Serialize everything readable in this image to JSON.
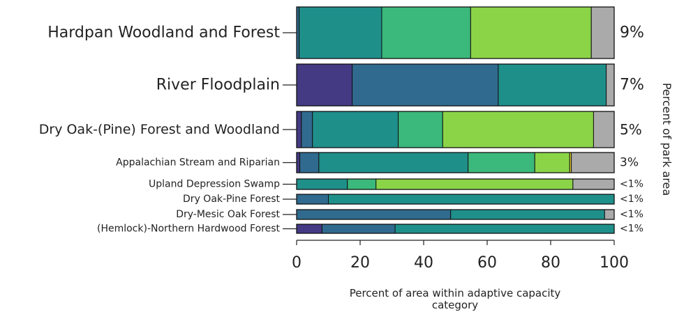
{
  "chart_data": {
    "type": "bar",
    "orientation": "horizontal",
    "stacked": true,
    "xlabel": "Percent of area within adaptive capacity category",
    "y2label": "Percent of park area",
    "xlim": [
      0,
      100
    ],
    "xticks": [
      "0",
      "20",
      "40",
      "60",
      "80",
      "100"
    ],
    "grid": false,
    "colors": [
      "#433a83",
      "#306a8e",
      "#1f8f8a",
      "#3bb87b",
      "#8bd448",
      "#f0dc30",
      "#aaaaaa"
    ],
    "rows": [
      {
        "label": "Hardpan Woodland and Forest",
        "park_pct": "9%",
        "segments": [
          0,
          0.8,
          26,
          28,
          38,
          0,
          7.2
        ]
      },
      {
        "label": "River Floodplain",
        "park_pct": "7%",
        "segments": [
          17.5,
          46,
          34,
          0,
          0,
          0,
          2.5
        ]
      },
      {
        "label": "Dry Oak-(Pine) Forest and Woodland",
        "park_pct": "5%",
        "segments": [
          1.5,
          3.5,
          27,
          14,
          47.5,
          0,
          6.5
        ]
      },
      {
        "label": "Appalachian Stream and Riparian",
        "park_pct": "3%",
        "segments": [
          1,
          6,
          47,
          21,
          11,
          0.5,
          13.5
        ]
      },
      {
        "label": "Upland Depression Swamp",
        "park_pct": "<1%",
        "segments": [
          0,
          0,
          16,
          9,
          62,
          0,
          13
        ]
      },
      {
        "label": "Dry Oak-Pine Forest",
        "park_pct": "<1%",
        "segments": [
          0,
          10,
          90,
          0,
          0,
          0,
          0
        ]
      },
      {
        "label": "Dry-Mesic Oak Forest",
        "park_pct": "<1%",
        "segments": [
          0,
          48.5,
          48.5,
          0,
          0,
          0,
          3
        ]
      },
      {
        "label": "(Hemlock)-Northern Hardwood Forest",
        "park_pct": "<1%",
        "segments": [
          8,
          23,
          69,
          0,
          0,
          0,
          0
        ]
      }
    ]
  }
}
